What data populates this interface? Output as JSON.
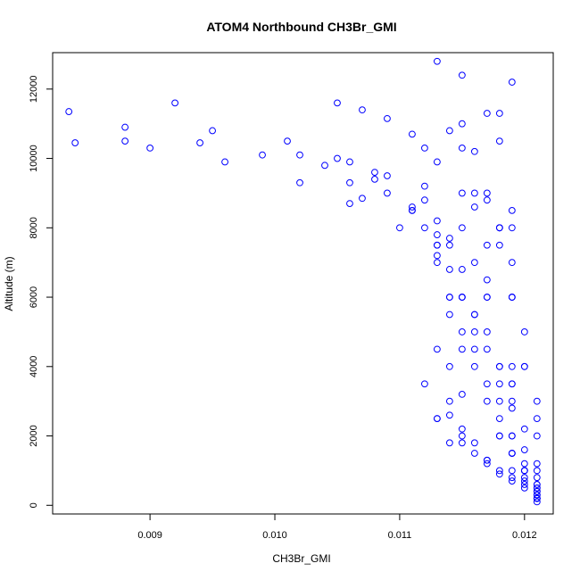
{
  "chart_data": {
    "type": "scatter",
    "title": "ATOM4 Northbound CH3Br_GMI",
    "xlabel": "CH3Br_GMI",
    "ylabel": "Altitude (m)",
    "xlim": [
      0.00822,
      0.01223
    ],
    "ylim": [
      -250,
      13050
    ],
    "xticks": [
      "0.009",
      "0.010",
      "0.011",
      "0.012"
    ],
    "xtick_values": [
      0.009,
      0.01,
      0.011,
      0.012
    ],
    "yticks": [
      "0",
      "2000",
      "4000",
      "6000",
      "8000",
      "10000",
      "12000"
    ],
    "ytick_values": [
      0,
      2000,
      4000,
      6000,
      8000,
      10000,
      12000
    ],
    "grid": false,
    "marker": "open-circle",
    "series": [
      {
        "color": "#0000ff",
        "x": [
          0.00835,
          0.0092,
          0.0105,
          0.0107,
          0.0109,
          0.0111,
          0.0113,
          0.0115,
          0.0117,
          0.0119,
          0.0121,
          0.0112,
          0.0115,
          0.0117,
          0.0118,
          0.0119,
          0.012,
          0.0121,
          0.0121,
          0.0088,
          0.0094,
          0.0099,
          0.0104,
          0.0108,
          0.0112,
          0.0116,
          0.0118,
          0.0119,
          0.012,
          0.0121,
          0.0121,
          0.0084,
          0.009,
          0.0096,
          0.0102,
          0.0106,
          0.011,
          0.0113,
          0.0115,
          0.0117,
          0.0118,
          0.0118,
          0.0119,
          0.012,
          0.0121,
          0.0121,
          0.0088,
          0.0095,
          0.0101,
          0.0105,
          0.0108,
          0.0111,
          0.0113,
          0.0114,
          0.0114,
          0.0113,
          0.0114,
          0.0117,
          0.0119,
          0.0121,
          0.0102,
          0.0106,
          0.0109,
          0.0112,
          0.0114,
          0.0115,
          0.0115,
          0.0114,
          0.0115,
          0.0116,
          0.0118,
          0.012,
          0.0121,
          0.0106,
          0.0109,
          0.0111,
          0.0113,
          0.0115,
          0.0116,
          0.0116,
          0.0115,
          0.0114,
          0.0115,
          0.0116,
          0.0117,
          0.0118,
          0.0119,
          0.012,
          0.0121,
          0.0119,
          0.0115,
          0.0114,
          0.0116,
          0.0118,
          0.0117,
          0.0116,
          0.0117,
          0.0118,
          0.0119,
          0.012,
          0.0121,
          0.0121,
          0.0118,
          0.0118,
          0.0119,
          0.0119,
          0.0119,
          0.0119,
          0.012,
          0.012,
          0.0121,
          0.0121,
          0.0107,
          0.0111,
          0.0113,
          0.0114,
          0.0113,
          0.0114,
          0.0115,
          0.0117,
          0.0118,
          0.0119,
          0.0121,
          0.0112,
          0.0113,
          0.0114,
          0.0114,
          0.0113,
          0.0112,
          0.0113,
          0.0115,
          0.0117,
          0.0119,
          0.012,
          0.0121,
          0.0113,
          0.0115,
          0.0117,
          0.0116,
          0.0115,
          0.0117,
          0.0119,
          0.012,
          0.0121,
          0.0121,
          0.0119,
          0.0116,
          0.0115,
          0.0116,
          0.0118,
          0.0119,
          0.0119,
          0.0118,
          0.0119,
          0.012,
          0.0121,
          0.0121,
          0.0117,
          0.0118,
          0.0117,
          0.0116,
          0.0117,
          0.0118,
          0.0119,
          0.012,
          0.012,
          0.0121,
          0.0121,
          0.0121
        ],
        "y": [
          11350,
          11600,
          11600,
          11400,
          11150,
          10700,
          9900,
          8000,
          6000,
          3500,
          300,
          10300,
          10300,
          9000,
          8000,
          6000,
          4000,
          2000,
          200,
          10500,
          10450,
          10100,
          9800,
          9600,
          9200,
          8600,
          8000,
          7000,
          5000,
          3000,
          300,
          10450,
          10300,
          9900,
          9300,
          8700,
          8000,
          7200,
          6000,
          5000,
          4000,
          3000,
          2000,
          1000,
          400,
          200,
          10900,
          10800,
          10500,
          10000,
          9400,
          8500,
          7500,
          6000,
          4000,
          2500,
          1800,
          1300,
          800,
          300,
          10100,
          9900,
          9500,
          8800,
          7700,
          6000,
          4500,
          3000,
          2000,
          1500,
          1000,
          600,
          200,
          9300,
          9000,
          8500,
          7800,
          6800,
          5500,
          4000,
          3200,
          2600,
          2200,
          1800,
          1200,
          900,
          700,
          500,
          200,
          12200,
          11000,
          10800,
          9000,
          8000,
          6000,
          4500,
          3000,
          2000,
          1500,
          1000,
          600,
          200,
          11300,
          10500,
          8500,
          6000,
          4000,
          2000,
          1200,
          800,
          500,
          200,
          8850,
          8600,
          8200,
          7500,
          7000,
          6000,
          5000,
          3500,
          2500,
          1500,
          800,
          8000,
          7500,
          6800,
          5500,
          4500,
          3500,
          2500,
          1800,
          1300,
          1000,
          700,
          400,
          12800,
          12400,
          11300,
          10200,
          9000,
          7500,
          6000,
          4000,
          2500,
          1200,
          8000,
          7000,
          6000,
          5000,
          4000,
          3500,
          3000,
          2000,
          1500,
          1000,
          600,
          200,
          8800,
          7500,
          6500,
          5500,
          4500,
          3500,
          2800,
          2200,
          1600,
          1000,
          500,
          100
        ]
      }
    ]
  }
}
